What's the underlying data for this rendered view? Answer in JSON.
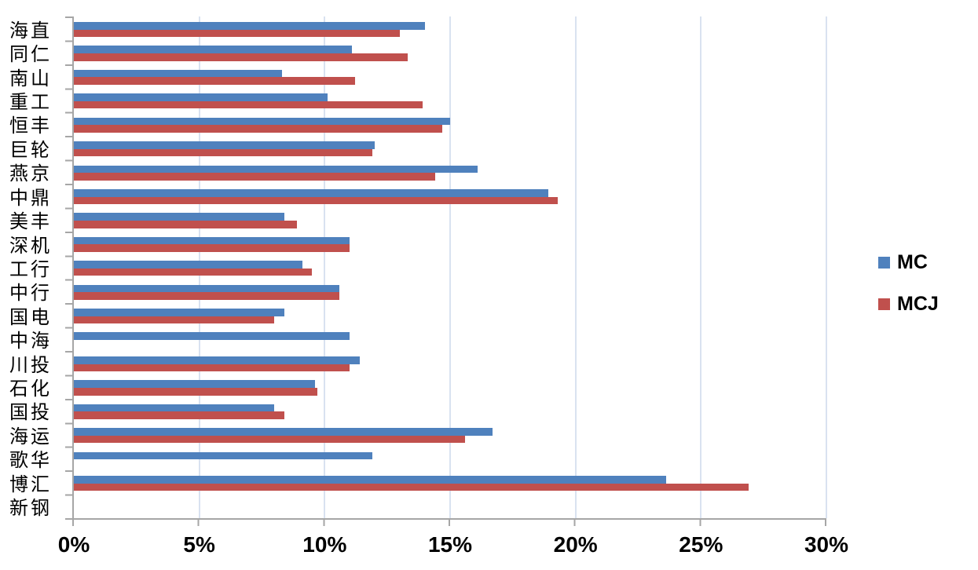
{
  "chart_data": {
    "type": "bar",
    "orientation": "horizontal",
    "title": "",
    "xlabel": "",
    "ylabel": "",
    "categories": [
      "海直",
      "同仁",
      "南山",
      "重工",
      "恒丰",
      "巨轮",
      "燕京",
      "中鼎",
      "美丰",
      "深机",
      "工行",
      "中行",
      "国电",
      "中海",
      "川投",
      "石化",
      "国投",
      "海运",
      "歌华",
      "博汇",
      "新钢"
    ],
    "series": [
      {
        "name": "MC",
        "color": "#4F81BD",
        "values": [
          14.0,
          11.1,
          8.3,
          10.1,
          15.0,
          12.0,
          16.1,
          18.9,
          8.4,
          11.0,
          9.1,
          10.6,
          8.4,
          11.0,
          11.4,
          9.6,
          8.0,
          16.7,
          11.9,
          23.6,
          null
        ]
      },
      {
        "name": "MCJ",
        "color": "#C0504D",
        "values": [
          13.0,
          13.3,
          11.2,
          13.9,
          14.7,
          11.9,
          14.4,
          19.3,
          8.9,
          11.0,
          9.5,
          10.6,
          8.0,
          null,
          11.0,
          9.7,
          8.4,
          15.6,
          null,
          26.9,
          null
        ]
      }
    ],
    "x_axis": {
      "min": 0,
      "max": 30,
      "step": 5,
      "ticks": [
        "0%",
        "5%",
        "10%",
        "15%",
        "20%",
        "25%",
        "30%"
      ],
      "unit": "percent"
    },
    "legend": {
      "position": "right",
      "entries": [
        "MC",
        "MCJ"
      ]
    },
    "grid": true,
    "style": {
      "gridline_color": "#D9E2F0",
      "axis_color": "#A6A6A6",
      "background": "#FFFFFF"
    }
  }
}
